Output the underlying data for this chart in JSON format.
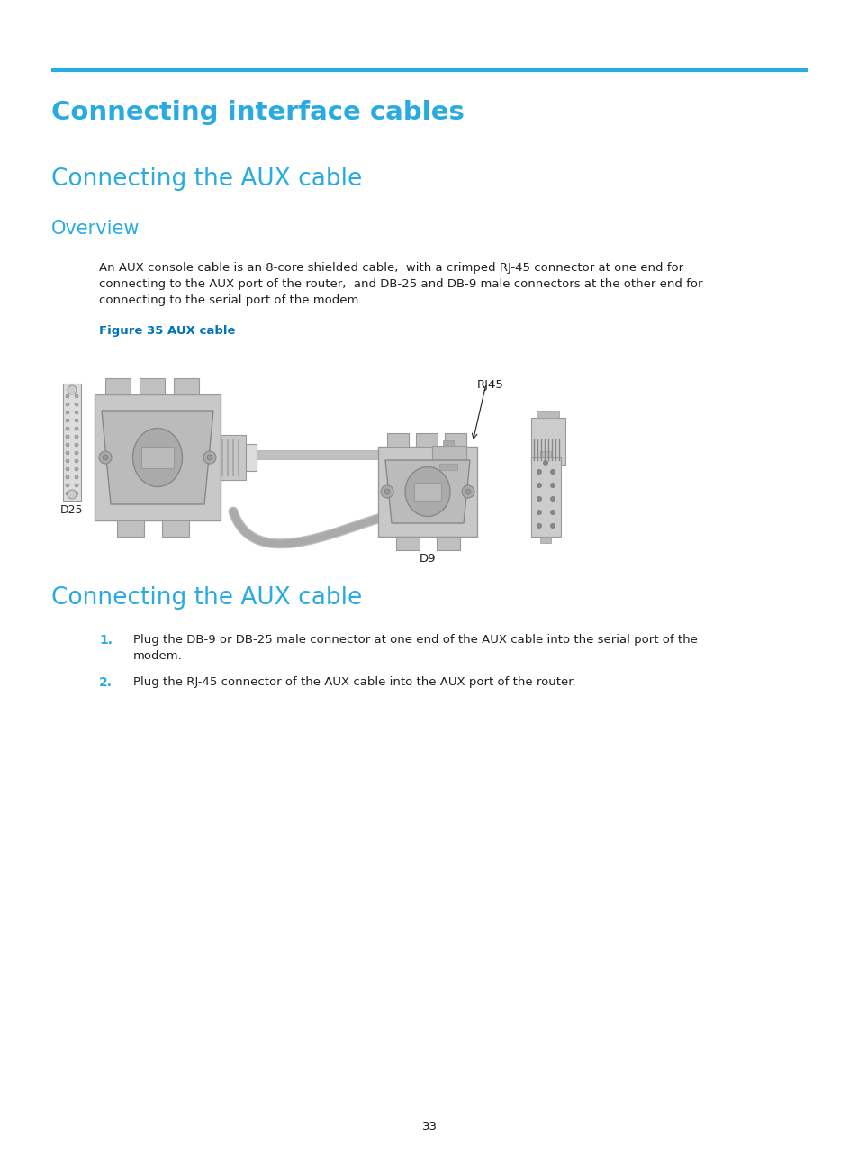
{
  "page_title": "Connecting interface cables",
  "section1_title": "Connecting the AUX cable",
  "subsection1_title": "Overview",
  "body_line1": "An AUX console cable is an 8-core shielded cable,  with a crimped RJ-45 connector at one end for",
  "body_line2": "connecting to the AUX port of the router,  and DB-25 and DB-9 male connectors at the other end for",
  "body_line3": "connecting to the serial port of the modem.",
  "figure_caption": "Figure 35 AUX cable",
  "section2_title": "Connecting the AUX cable",
  "step1_num": "1.",
  "step1_line1": "Plug the DB-9 or DB-25 male connector at one end of the AUX cable into the serial port of the",
  "step1_line2": "modem.",
  "step2_num": "2.",
  "step2_text": "Plug the RJ-45 connector of the AUX cable into the AUX port of the router.",
  "page_number": "33",
  "cyan_color": "#29ABE2",
  "title_color": "#29ABE2",
  "text_color": "#231F20",
  "figure_caption_color": "#0072BC",
  "step_num_color": "#29ABE2",
  "background_color": "#FFFFFF",
  "label_d25": "D25",
  "label_rj45": "RJ45",
  "label_d9": "D9"
}
